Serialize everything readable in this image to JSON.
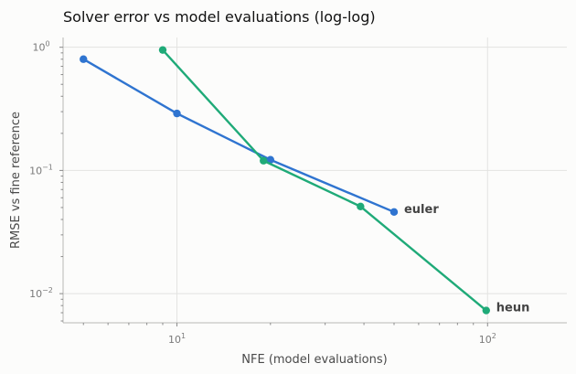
{
  "chart_data": {
    "type": "line",
    "title": "Solver error vs model evaluations (log-log)",
    "xlabel": "NFE (model evaluations)",
    "ylabel": "RMSE vs fine reference",
    "x_scale": "log",
    "y_scale": "log",
    "xlim": [
      4.3,
      180
    ],
    "ylim": [
      0.0058,
      1.2
    ],
    "x_ticks": [
      {
        "value": 10,
        "base": "10",
        "exp": "1"
      },
      {
        "value": 100,
        "base": "10",
        "exp": "2"
      }
    ],
    "y_ticks": [
      {
        "value": 1,
        "base": "10",
        "exp": "0"
      },
      {
        "value": 0.1,
        "base": "10",
        "exp": "−1"
      },
      {
        "value": 0.01,
        "base": "10",
        "exp": "−2"
      }
    ],
    "grid": true,
    "legend": "none",
    "series": [
      {
        "name": "euler",
        "color": "#2f74d0",
        "x": [
          5,
          10,
          20,
          50
        ],
        "y": [
          0.8,
          0.29,
          0.122,
          0.046
        ]
      },
      {
        "name": "heun",
        "color": "#1faa78",
        "x": [
          9,
          19,
          39,
          99
        ],
        "y": [
          0.95,
          0.12,
          0.051,
          0.0073
        ]
      }
    ]
  }
}
